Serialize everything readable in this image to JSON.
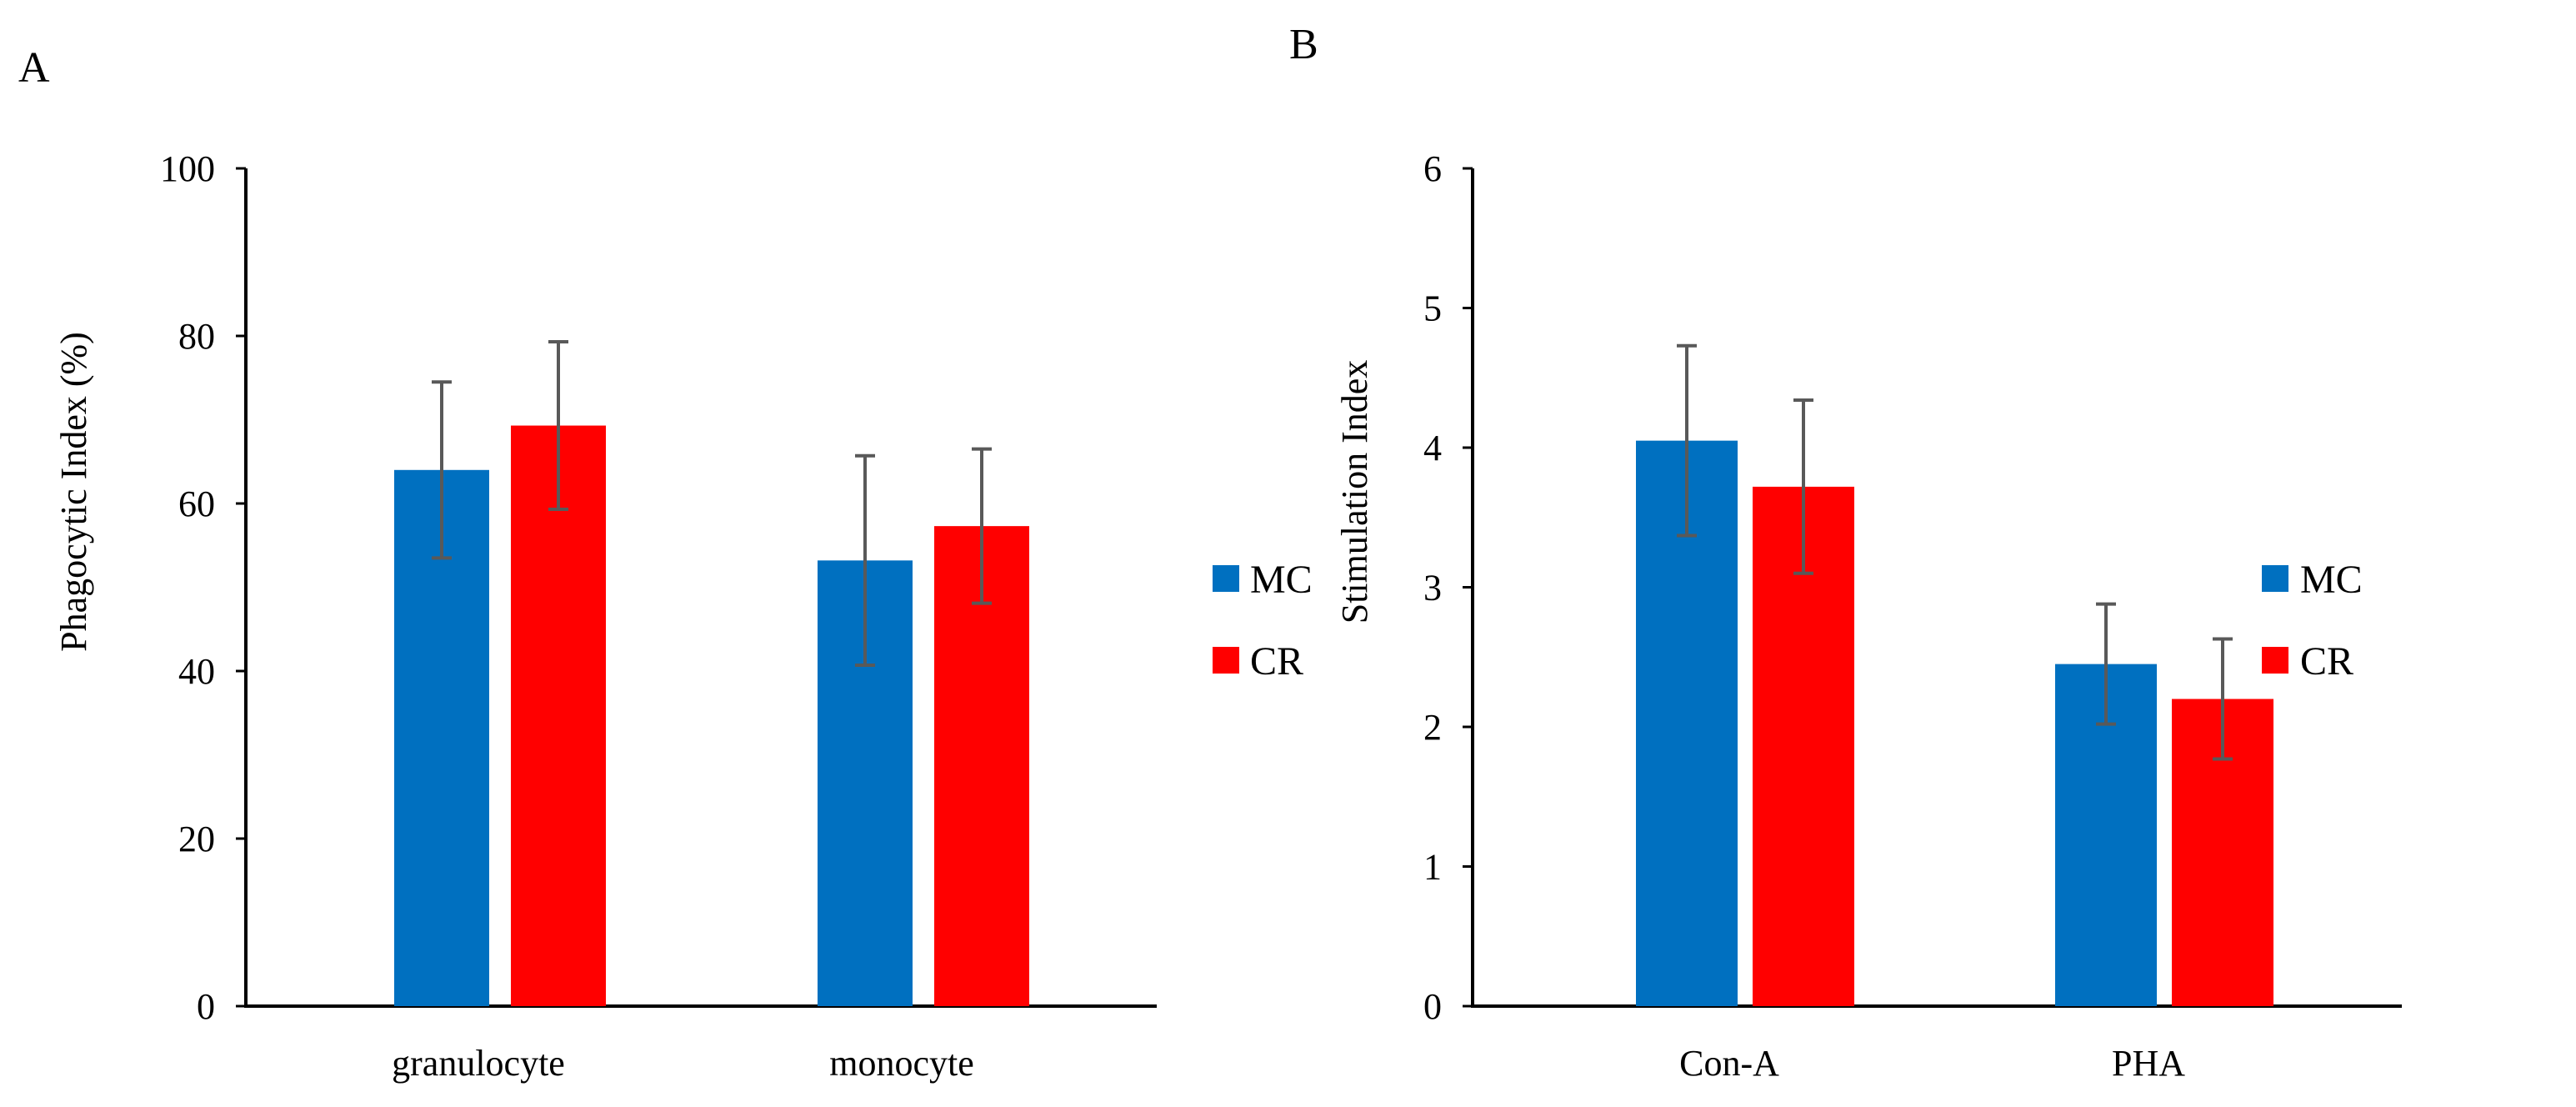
{
  "colors": {
    "MC": "#0070C0",
    "CR": "#FF0000",
    "axis": "#000000",
    "error": "#595959"
  },
  "chart_data": [
    {
      "panel_label": "A",
      "type": "bar",
      "title": "",
      "xlabel": "",
      "ylabel": "Phagocytic Index (%)",
      "ylim": [
        0,
        100
      ],
      "yticks": [
        0,
        20,
        40,
        60,
        80,
        100
      ],
      "categories": [
        "granulocyte",
        "monocyte"
      ],
      "series": [
        {
          "name": "MC",
          "values": [
            64,
            53.2
          ],
          "errors": [
            10.5,
            12.5
          ]
        },
        {
          "name": "CR",
          "values": [
            69.3,
            57.3
          ],
          "errors": [
            10,
            9.2
          ]
        }
      ],
      "legend": [
        "MC",
        "CR"
      ],
      "legend_position": "right"
    },
    {
      "panel_label": "B",
      "type": "bar",
      "title": "",
      "xlabel": "",
      "ylabel": "Stimulation Index",
      "ylim": [
        0,
        6
      ],
      "yticks": [
        0,
        1,
        2,
        3,
        4,
        5,
        6
      ],
      "categories": [
        "Con-A",
        "PHA"
      ],
      "series": [
        {
          "name": "MC",
          "values": [
            4.05,
            2.45
          ],
          "errors": [
            0.68,
            0.43
          ]
        },
        {
          "name": "CR",
          "values": [
            3.72,
            2.2
          ],
          "errors": [
            0.62,
            0.43
          ]
        }
      ],
      "legend": [
        "MC",
        "CR"
      ],
      "legend_position": "right"
    }
  ]
}
